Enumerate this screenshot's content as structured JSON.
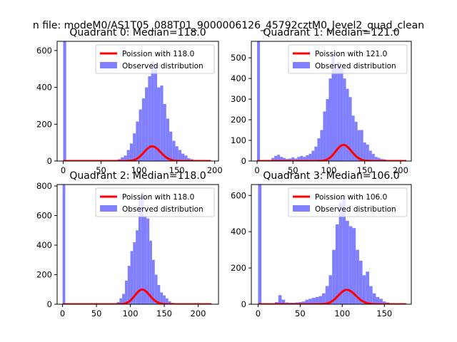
{
  "figure": {
    "suptitle": "n file: modeM0/AS1T05_088T01_9000006126_45792cztM0_level2_quad_clean"
  },
  "colors": {
    "observed": "#8080ff",
    "poisson": "#ff0000"
  },
  "chart_data": [
    {
      "type": "bar",
      "title": "Quadrant 0: Median=118.0",
      "xlim": [
        -8,
        205
      ],
      "ylim": [
        0,
        650
      ],
      "xticks": [
        0,
        50,
        100,
        150,
        200
      ],
      "xtick_labels": [
        "0",
        "50",
        "100",
        "150",
        "200"
      ],
      "yticks": [
        0,
        200,
        400,
        600
      ],
      "ytick_labels": [
        "0",
        "200",
        "400",
        "600"
      ],
      "bin_width": 4,
      "series": [
        {
          "name": "Observed distribution",
          "kind": "histogram",
          "bins": [
            0,
            68,
            72,
            76,
            80,
            84,
            88,
            92,
            96,
            100,
            104,
            108,
            112,
            116,
            120,
            124,
            128,
            132,
            136,
            140,
            144,
            148,
            152,
            156,
            160,
            164,
            168,
            172,
            176,
            180,
            184,
            188,
            192
          ],
          "values": [
            650,
            5,
            10,
            20,
            30,
            60,
            95,
            150,
            215,
            280,
            340,
            400,
            460,
            540,
            520,
            400,
            410,
            310,
            230,
            160,
            110,
            80,
            60,
            40,
            30,
            15,
            10,
            6,
            4,
            2,
            1,
            1,
            1
          ]
        },
        {
          "name": "Poission with 118.0",
          "kind": "poisson",
          "mean": 118.0,
          "scale": 2170,
          "x_range": [
            0,
            195
          ]
        }
      ],
      "legend": {
        "position": "upper-right",
        "entries": [
          "Poission with 118.0",
          "Observed distribution"
        ]
      }
    },
    {
      "type": "bar",
      "title": "Quadrant 1: Median=121.0",
      "xlim": [
        -8,
        215
      ],
      "ylim": [
        0,
        580
      ],
      "xticks": [
        0,
        50,
        100,
        150,
        200
      ],
      "xtick_labels": [
        "0",
        "50",
        "100",
        "150",
        "200"
      ],
      "yticks": [
        0,
        100,
        200,
        300,
        400,
        500
      ],
      "ytick_labels": [
        "0",
        "100",
        "200",
        "300",
        "400",
        "500"
      ],
      "bin_width": 4,
      "series": [
        {
          "name": "Observed distribution",
          "kind": "histogram",
          "bins": [
            0,
            20,
            24,
            28,
            32,
            36,
            40,
            44,
            48,
            52,
            56,
            60,
            64,
            68,
            72,
            76,
            80,
            84,
            88,
            92,
            96,
            100,
            104,
            108,
            112,
            116,
            120,
            124,
            128,
            132,
            136,
            140,
            144,
            148,
            152,
            156,
            160,
            164,
            168,
            172,
            176,
            180,
            184,
            188,
            192,
            196,
            200
          ],
          "values": [
            580,
            15,
            25,
            30,
            20,
            15,
            10,
            12,
            18,
            12,
            20,
            25,
            20,
            28,
            35,
            50,
            70,
            110,
            150,
            240,
            300,
            400,
            520,
            460,
            480,
            450,
            400,
            350,
            310,
            220,
            190,
            150,
            150,
            90,
            80,
            50,
            35,
            20,
            15,
            10,
            8,
            5,
            3,
            2,
            2,
            1,
            1
          ]
        },
        {
          "name": "Poission with 121.0",
          "kind": "poisson",
          "mean": 121.0,
          "scale": 2150,
          "x_range": [
            0,
            208
          ]
        }
      ],
      "legend": {
        "position": "upper-right",
        "entries": [
          "Poission with 121.0",
          "Observed distribution"
        ]
      }
    },
    {
      "type": "bar",
      "title": "Quadrant 2: Median=118.0",
      "xlim": [
        -8,
        230
      ],
      "ylim": [
        0,
        810
      ],
      "xticks": [
        0,
        50,
        100,
        150,
        200
      ],
      "xtick_labels": [
        "0",
        "50",
        "100",
        "150",
        "200"
      ],
      "yticks": [
        0,
        200,
        400,
        600,
        800
      ],
      "ytick_labels": [
        "0",
        "200",
        "400",
        "600",
        "800"
      ],
      "bin_width": 4,
      "series": [
        {
          "name": "Observed distribution",
          "kind": "histogram",
          "bins": [
            0,
            76,
            80,
            84,
            88,
            92,
            96,
            100,
            104,
            108,
            112,
            116,
            120,
            124,
            128,
            132,
            136,
            140,
            144,
            148,
            152,
            156,
            160,
            164
          ],
          "values": [
            810,
            5,
            15,
            40,
            70,
            160,
            260,
            360,
            420,
            500,
            720,
            760,
            600,
            580,
            430,
            300,
            200,
            130,
            80,
            60,
            40,
            20,
            10,
            5
          ]
        },
        {
          "name": "Poission with 118.0",
          "kind": "poisson",
          "mean": 118.0,
          "scale": 2700,
          "x_range": [
            0,
            220
          ]
        }
      ],
      "legend": {
        "position": "upper-right",
        "entries": [
          "Poission with 118.0",
          "Observed distribution"
        ]
      }
    },
    {
      "type": "bar",
      "title": "Quadrant 3: Median=106.0",
      "xlim": [
        -8,
        182
      ],
      "ylim": [
        0,
        660
      ],
      "xticks": [
        0,
        50,
        100,
        150
      ],
      "xtick_labels": [
        "0",
        "50",
        "100",
        "150"
      ],
      "yticks": [
        0,
        200,
        400,
        600
      ],
      "ytick_labels": [
        "0",
        "200",
        "400",
        "600"
      ],
      "bin_width": 4,
      "series": [
        {
          "name": "Observed distribution",
          "kind": "histogram",
          "bins": [
            0,
            16,
            20,
            24,
            28,
            32,
            36,
            40,
            44,
            48,
            52,
            56,
            60,
            64,
            68,
            72,
            76,
            80,
            84,
            88,
            92,
            96,
            100,
            104,
            108,
            112,
            116,
            120,
            124,
            128,
            132,
            136,
            140,
            144,
            148,
            152,
            156,
            160
          ],
          "values": [
            660,
            5,
            12,
            50,
            25,
            10,
            8,
            8,
            10,
            12,
            15,
            25,
            30,
            35,
            40,
            45,
            60,
            100,
            160,
            300,
            440,
            560,
            600,
            460,
            430,
            420,
            300,
            240,
            160,
            180,
            100,
            60,
            40,
            30,
            15,
            10,
            5,
            3
          ]
        },
        {
          "name": "Poission with 106.0",
          "kind": "poisson",
          "mean": 106.0,
          "scale": 2050,
          "x_range": [
            0,
            176
          ]
        }
      ],
      "legend": {
        "position": "upper-right",
        "entries": [
          "Poission with 106.0",
          "Observed distribution"
        ]
      }
    }
  ]
}
